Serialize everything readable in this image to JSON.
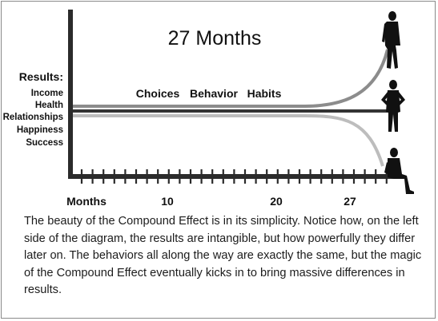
{
  "title": "27 Months",
  "results_label": "Results:",
  "results_items": [
    "Income",
    "Health",
    "Relationships",
    "Happiness",
    "Success"
  ],
  "line_labels": [
    "Choices",
    "Behavior",
    "Habits"
  ],
  "axis": {
    "start_label": "Months",
    "tick_labels": [
      "10",
      "20",
      "27"
    ],
    "tick_count": 29
  },
  "caption": "The beauty of the Compound Effect is in its simplicity. Notice how, on the left side of the diagram, the results are intangible, but how powerfully they differ later on. The behaviors all along the way are exactly the same, but the magic of the Compound Effect eventually kicks in to bring massive differences in results.",
  "figures": [
    "walking-man",
    "standing-man",
    "sitting-man"
  ],
  "colors": {
    "axis": "#2b2b2b",
    "middle_line": "#333333",
    "upper_curve": "#8c8c8c",
    "lower_curve": "#bdbdbd"
  }
}
